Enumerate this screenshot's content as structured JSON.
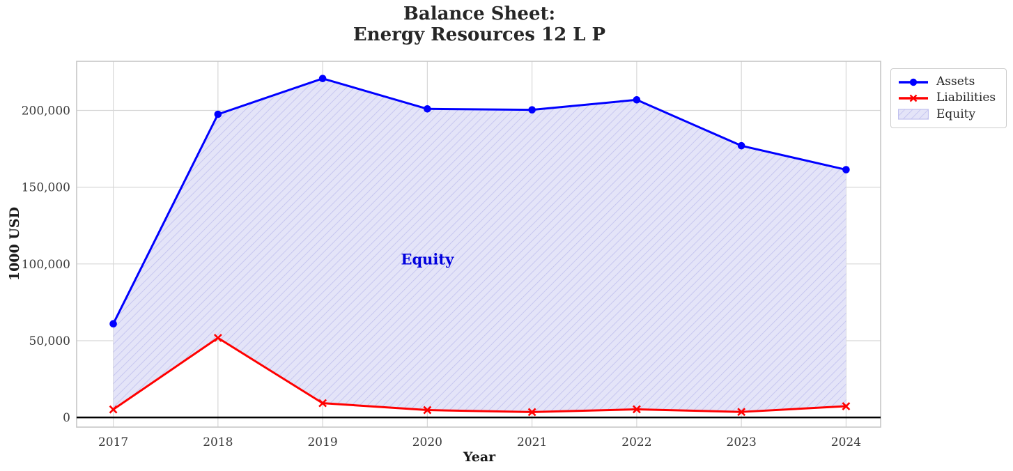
{
  "chart_data": {
    "type": "line",
    "title": "Balance Sheet:\nEnergy Resources 12 L P",
    "title_lines": [
      "Balance Sheet:",
      "Energy Resources 12 L P"
    ],
    "xlabel": "Year",
    "ylabel": "1000 USD",
    "x": [
      2017,
      2018,
      2019,
      2020,
      2021,
      2022,
      2023,
      2024
    ],
    "xtick_labels": [
      "2017",
      "2018",
      "2019",
      "2020",
      "2021",
      "2022",
      "2023",
      "2024"
    ],
    "ytick_values": [
      0,
      50000,
      100000,
      150000,
      200000
    ],
    "ytick_labels": [
      "0",
      "50,000",
      "100,000",
      "150,000",
      "200,000"
    ],
    "xlim": [
      2016.65,
      2024.33
    ],
    "ylim": [
      -6300,
      232000
    ],
    "grid": true,
    "grid_color": "#d7d7d7",
    "spine_color": "#c6c6c6",
    "tick_label_color": "#3a3a3a",
    "zero_line_color": "#000000",
    "legend_position": "upper-right-outside",
    "series": [
      {
        "name": "Assets",
        "color": "#0000ff",
        "marker": "circle",
        "line_width": 3,
        "values": [
          61000,
          197500,
          220800,
          201000,
          200400,
          206900,
          177000,
          161400
        ]
      },
      {
        "name": "Liabilities",
        "color": "#ff0000",
        "marker": "x",
        "line_width": 3,
        "values": [
          5200,
          51800,
          9300,
          4800,
          3500,
          5300,
          3600,
          7300
        ]
      }
    ],
    "fill_between": {
      "name": "Equity",
      "between": [
        "Assets",
        "Liabilities"
      ],
      "fill_color": "#e4e4f8",
      "hatch": "///",
      "hatch_color": "#c0c0ee"
    },
    "annotation": {
      "text": "Equity",
      "x": 2020,
      "y": 103000,
      "color": "#0000dd"
    }
  }
}
